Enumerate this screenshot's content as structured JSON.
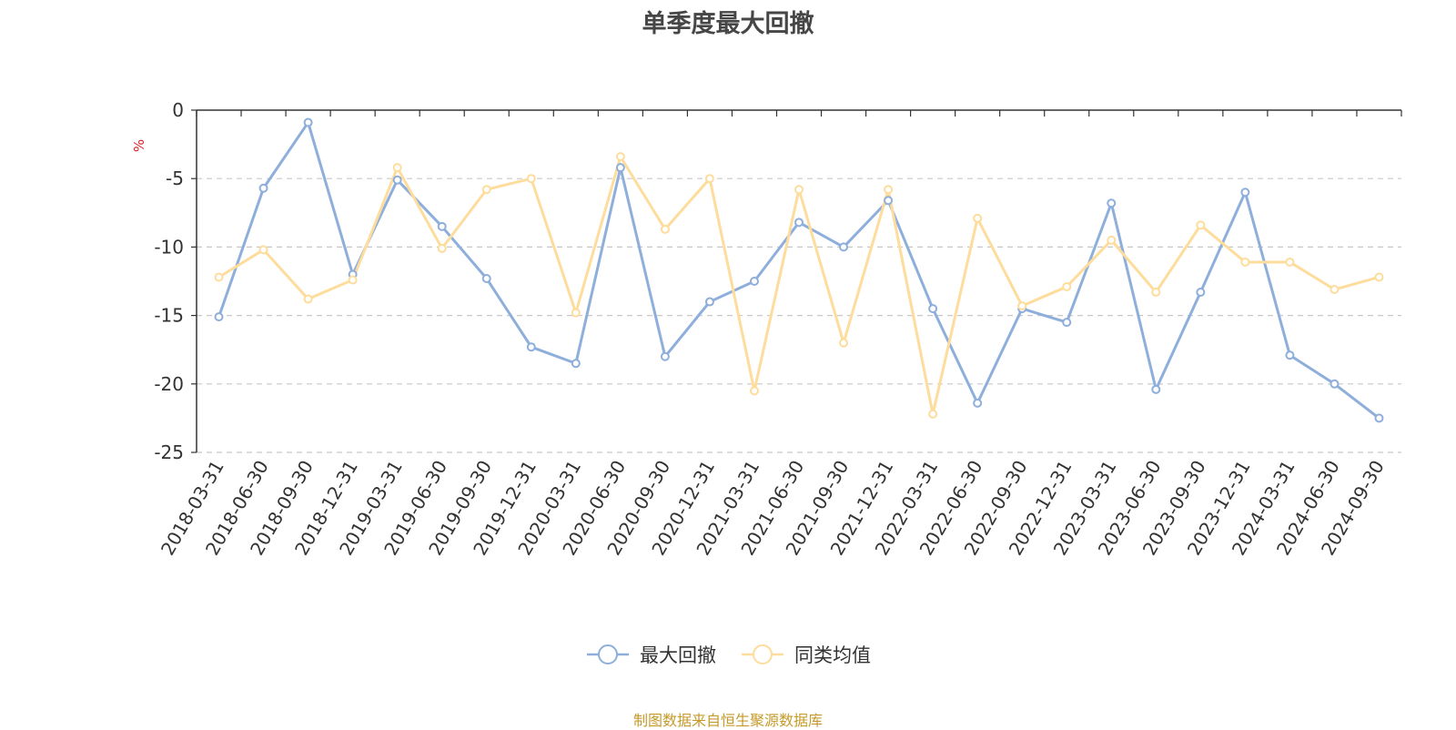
{
  "chart_data": {
    "type": "line",
    "title": "单季度最大回撤",
    "ylabel": "%",
    "xlabel": "",
    "ylim": [
      -25,
      0
    ],
    "yticks": [
      0,
      -5,
      -10,
      -15,
      -20,
      -25
    ],
    "grid": true,
    "legend_position": "bottom-center",
    "categories": [
      "2018-03-31",
      "2018-06-30",
      "2018-09-30",
      "2018-12-31",
      "2019-03-31",
      "2019-06-30",
      "2019-09-30",
      "2019-12-31",
      "2020-03-31",
      "2020-06-30",
      "2020-09-30",
      "2020-12-31",
      "2021-03-31",
      "2021-06-30",
      "2021-09-30",
      "2021-12-31",
      "2022-03-31",
      "2022-06-30",
      "2022-09-30",
      "2022-12-31",
      "2023-03-31",
      "2023-06-30",
      "2023-09-30",
      "2023-12-31",
      "2024-03-31",
      "2024-06-30",
      "2024-09-30"
    ],
    "series": [
      {
        "name": "最大回撤",
        "color": "#8eaedb",
        "values": [
          -15.1,
          -5.7,
          -0.9,
          -12.0,
          -5.1,
          -8.5,
          -12.3,
          -17.3,
          -18.5,
          -4.2,
          -18.0,
          -14.0,
          -12.5,
          -8.2,
          -10.0,
          -6.6,
          -14.5,
          -21.4,
          -14.5,
          -15.5,
          -6.8,
          -20.4,
          -13.3,
          -6.0,
          -17.9,
          -20.0,
          -22.5
        ]
      },
      {
        "name": "同类均值",
        "color": "#fddc9c",
        "values": [
          -12.2,
          -10.2,
          -13.8,
          -12.4,
          -4.2,
          -10.1,
          -5.8,
          -5.0,
          -14.8,
          -3.4,
          -8.7,
          -5.0,
          -20.5,
          -5.8,
          -17.0,
          -5.8,
          -22.2,
          -7.9,
          -14.3,
          -12.9,
          -9.5,
          -13.3,
          -8.4,
          -11.1,
          -11.1,
          -13.1,
          -12.2
        ]
      }
    ],
    "source_note": "制图数据来自恒生聚源数据库"
  }
}
